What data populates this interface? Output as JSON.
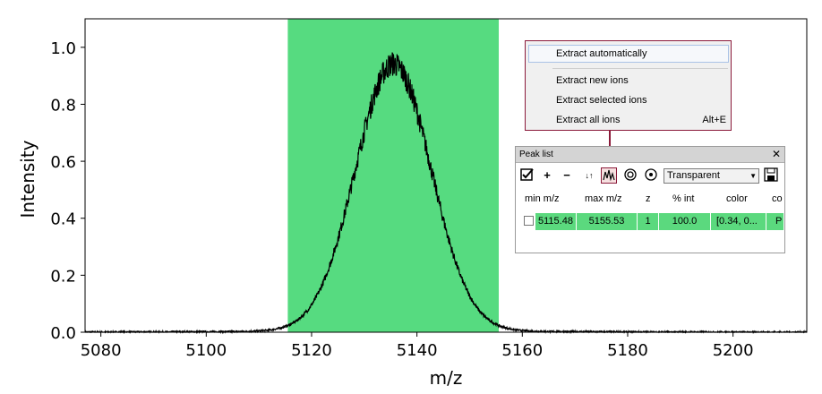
{
  "chart_data": {
    "type": "line",
    "xlabel": "m/z",
    "ylabel": "Intensity",
    "xlim": [
      5077,
      5214
    ],
    "ylim": [
      0,
      1.1
    ],
    "x_ticks": [
      5080,
      5100,
      5120,
      5140,
      5160,
      5180,
      5200
    ],
    "y_ticks": [
      0.0,
      0.2,
      0.4,
      0.6,
      0.8,
      1.0
    ],
    "x_tick_labels": [
      "5080",
      "5100",
      "5120",
      "5140",
      "5160",
      "5180",
      "5200"
    ],
    "y_tick_labels": [
      "0.0",
      "0.2",
      "0.4",
      "0.6",
      "0.8",
      "1.0"
    ],
    "peak": {
      "center": 5135.5,
      "max_intensity": 1.0,
      "sigma": 7.2
    },
    "series": [
      {
        "color": "#000000",
        "x": [
          5077,
          5090,
          5100,
          5110,
          5115,
          5120,
          5125,
          5130,
          5135,
          5140,
          5145,
          5150,
          5155,
          5160,
          5170,
          5180,
          5214
        ],
        "values": [
          0.0,
          0.004,
          0.01,
          0.03,
          0.05,
          0.12,
          0.3,
          0.62,
          0.92,
          0.75,
          0.44,
          0.2,
          0.06,
          0.02,
          0.008,
          0.004,
          0.0
        ]
      }
    ],
    "highlight_range": {
      "from": 5115.48,
      "to": 5155.53,
      "color": "#56db80"
    },
    "shadow_color": "#999999"
  },
  "context_menu": {
    "items": [
      {
        "label": "Extract automatically",
        "shortcut": ""
      },
      {
        "label": "Extract new ions",
        "shortcut": ""
      },
      {
        "label": "Extract selected ions",
        "shortcut": ""
      },
      {
        "label": "Extract all ions",
        "shortcut": "Alt+E"
      }
    ]
  },
  "peak_list": {
    "title": "Peak list",
    "close_symbol": "✕",
    "toolbar": {
      "check_icon": "check-box-icon",
      "add_symbol": "+",
      "remove_symbol": "−",
      "sort_symbol": "↓↑",
      "color_mode": "Transparent",
      "save_icon": "floppy-disk-icon"
    },
    "columns": [
      "min m/z",
      "max m/z",
      "z",
      "% int",
      "color",
      "co"
    ],
    "rows": [
      {
        "checked": false,
        "min_mz": "5115.48",
        "max_mz": "5155.53",
        "z": "1",
        "pct_int": "100.0",
        "color": "[0.34, 0...",
        "extra": "P"
      }
    ]
  }
}
